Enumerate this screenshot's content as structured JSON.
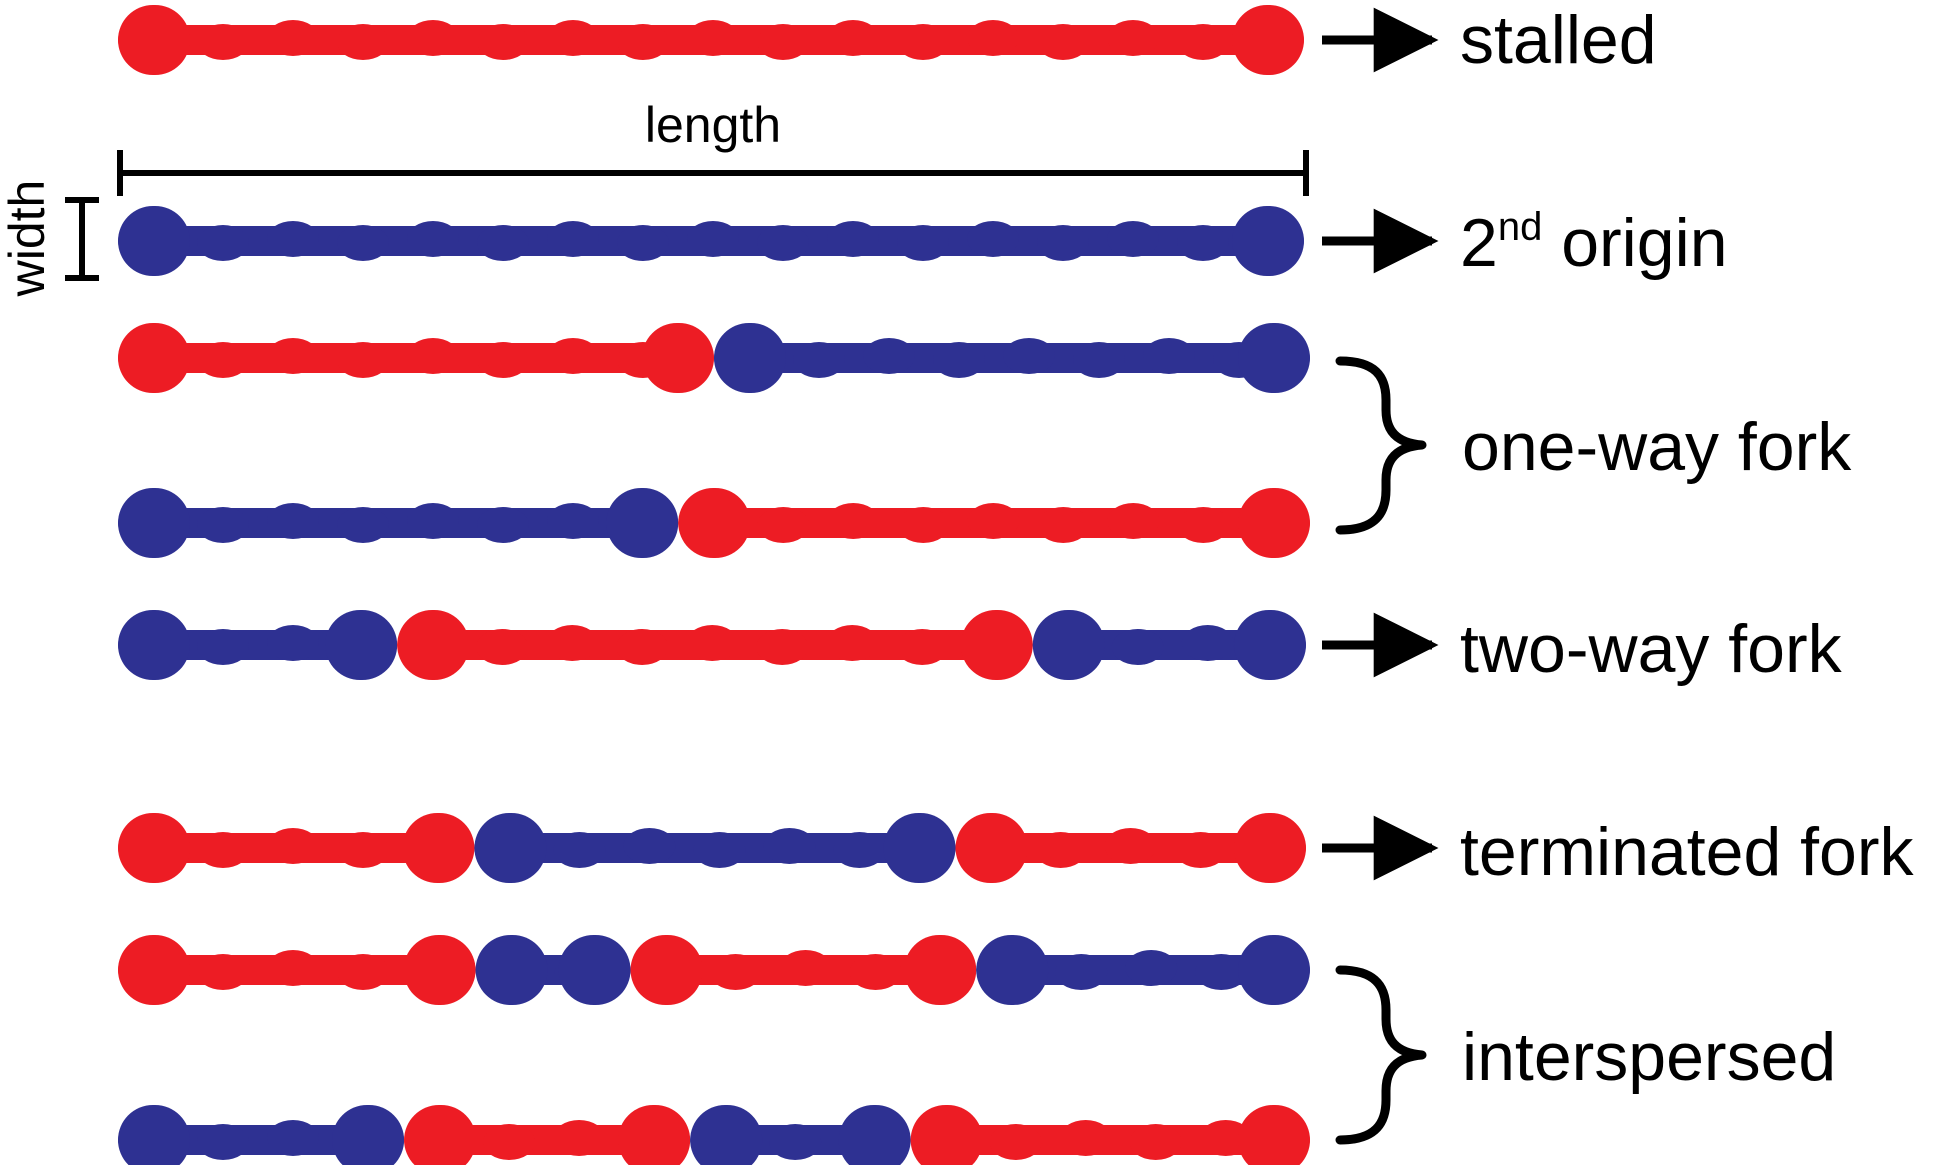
{
  "colors": {
    "red": "#ed1c24",
    "blue": "#2e3192",
    "ink": "#000000"
  },
  "measure": {
    "length_label": "length",
    "width_label": "width"
  },
  "fibers": [
    {
      "segments": [
        {
          "color": "red",
          "from": 0,
          "to": 1
        }
      ]
    },
    {
      "segments": [
        {
          "color": "blue",
          "from": 0,
          "to": 1
        }
      ]
    },
    {
      "segments": [
        {
          "color": "red",
          "from": 0,
          "to": 0.5
        },
        {
          "color": "blue",
          "from": 0.5,
          "to": 1
        }
      ]
    },
    {
      "segments": [
        {
          "color": "blue",
          "from": 0,
          "to": 0.47
        },
        {
          "color": "red",
          "from": 0.47,
          "to": 1
        }
      ]
    },
    {
      "segments": [
        {
          "color": "blue",
          "from": 0,
          "to": 0.235
        },
        {
          "color": "red",
          "from": 0.235,
          "to": 0.77
        },
        {
          "color": "blue",
          "from": 0.77,
          "to": 1
        }
      ]
    },
    {
      "segments": [
        {
          "color": "red",
          "from": 0,
          "to": 0.3
        },
        {
          "color": "blue",
          "from": 0.3,
          "to": 0.705
        },
        {
          "color": "red",
          "from": 0.705,
          "to": 1
        }
      ]
    },
    {
      "segments": [
        {
          "color": "red",
          "from": 0,
          "to": 0.3
        },
        {
          "color": "blue",
          "from": 0.3,
          "to": 0.43
        },
        {
          "color": "red",
          "from": 0.43,
          "to": 0.72
        },
        {
          "color": "blue",
          "from": 0.72,
          "to": 1
        }
      ]
    },
    {
      "segments": [
        {
          "color": "blue",
          "from": 0,
          "to": 0.24
        },
        {
          "color": "red",
          "from": 0.24,
          "to": 0.48
        },
        {
          "color": "blue",
          "from": 0.48,
          "to": 0.665
        },
        {
          "color": "red",
          "from": 0.665,
          "to": 1
        }
      ]
    }
  ],
  "labels": {
    "stalled": "stalled",
    "second_origin_number": "2",
    "second_origin_superscript": "nd",
    "second_origin_word": " origin",
    "one_way_fork": "one-way fork",
    "two_way_fork": "two-way fork",
    "terminated_fork": "terminated fork",
    "interspersed": "interspersed"
  }
}
